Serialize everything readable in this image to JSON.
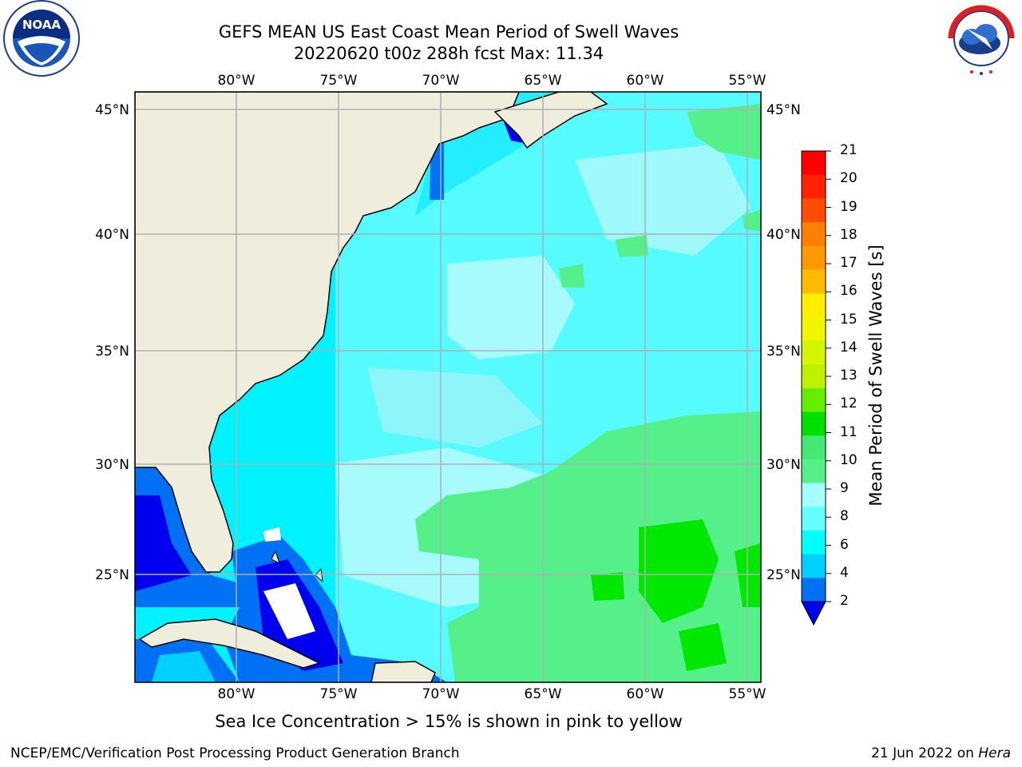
{
  "header": {
    "title_line1": "GEFS MEAN US East Coast Mean Period of Swell Waves",
    "title_line2": "20220620 t00z 288h fcst   Max: 11.34"
  },
  "logos": {
    "left": {
      "icon": "noaa-logo",
      "text": "NOAA"
    },
    "right": {
      "icon": "nws-logo",
      "text": "NATIONAL WEATHER SERVICE"
    }
  },
  "map": {
    "lon_labels": [
      "80°W",
      "75°W",
      "70°W",
      "65°W",
      "60°W",
      "55°W"
    ],
    "lat_labels": [
      "45°N",
      "40°N",
      "35°N",
      "30°N",
      "25°N"
    ],
    "land_color": "#efeddc",
    "gridline_color": "#b0b0b0"
  },
  "colorbar": {
    "title": "Mean Period of Swell Waves [s]",
    "tick_labels": [
      "21",
      "20",
      "19",
      "18",
      "17",
      "16",
      "15",
      "14",
      "13",
      "12",
      "11",
      "10",
      "9",
      "8",
      "6",
      "4",
      "2"
    ],
    "colors": [
      "#ff0000",
      "#ff2200",
      "#ff4d00",
      "#ff7f00",
      "#ff9900",
      "#ffbb00",
      "#ffee00",
      "#f0f500",
      "#d5f500",
      "#c0f000",
      "#66ee00",
      "#00e000",
      "#44e873",
      "#55f08a",
      "#a6ffff",
      "#66ffff",
      "#00ffff",
      "#00d0ff",
      "#0070f5"
    ],
    "under_color": "#0000ee"
  },
  "footer": {
    "note": "Sea Ice Concentration > 15% is shown in pink to yellow",
    "credit": "NCEP/EMC/Verification Post Processing Product Generation Branch",
    "date": "21 Jun 2022 on",
    "machine": "Hera"
  }
}
